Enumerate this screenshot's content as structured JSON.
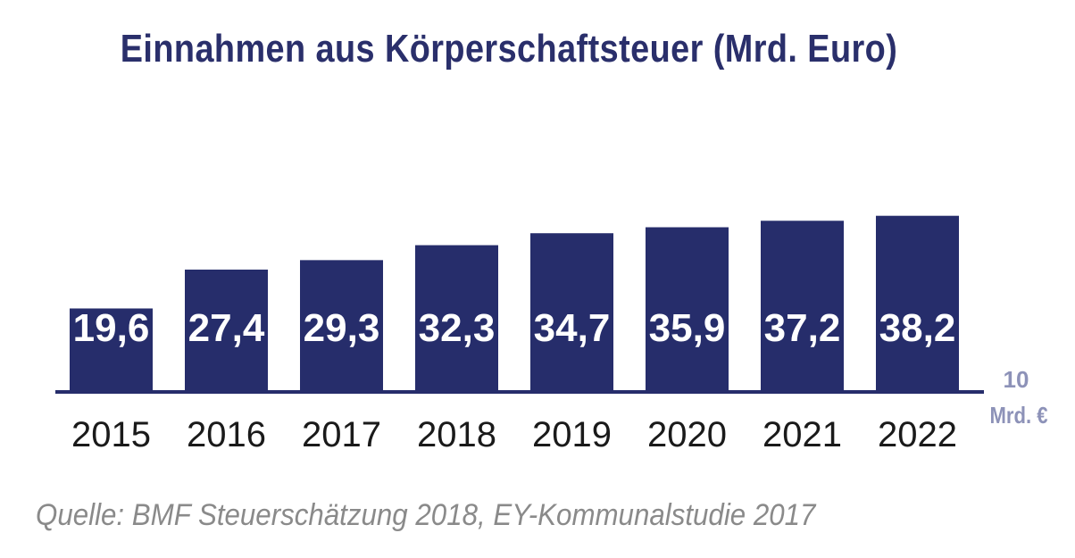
{
  "chart_data": {
    "type": "bar",
    "title": "Einnahmen aus Körperschaftsteuer (Mrd. Euro)",
    "categories": [
      "2015",
      "2016",
      "2017",
      "2018",
      "2019",
      "2020",
      "2021",
      "2022"
    ],
    "values": [
      19.6,
      27.4,
      29.3,
      32.3,
      34.7,
      35.9,
      37.2,
      38.2
    ],
    "value_labels": [
      "19,6",
      "27,4",
      "29,3",
      "32,3",
      "34,7",
      "35,9",
      "37,2",
      "38,2"
    ],
    "unit_marker": {
      "value": "10",
      "unit": "Mrd. €"
    },
    "bar_color": "#262d6b",
    "axis_color": "#262d6b",
    "grid": false,
    "legend": "none"
  },
  "source": "Quelle: BMF Steuerschätzung 2018, EY-Kommunalstudie 2017"
}
